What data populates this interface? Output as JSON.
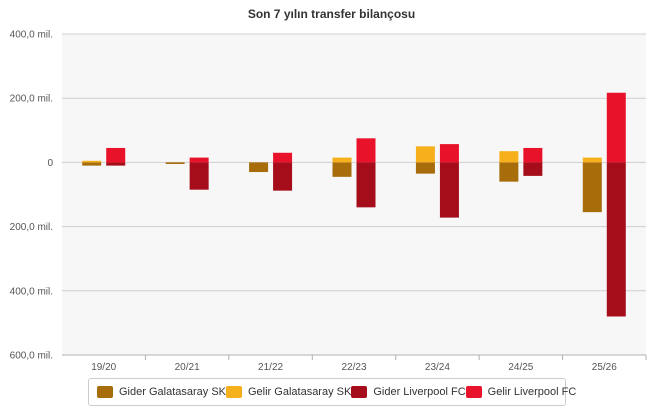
{
  "chart_data": {
    "type": "bar",
    "title": "Son 7 yılın transfer bilançosu",
    "categories": [
      "19/20",
      "20/21",
      "21/22",
      "22/23",
      "23/24",
      "24/25",
      "25/26"
    ],
    "ylim": [
      -600,
      400
    ],
    "yticks": [
      400,
      200,
      0,
      -200,
      -400,
      -600
    ],
    "ytick_labels": [
      "400,0 mil.",
      "200,0 mil.",
      "0",
      "200,0 mil.",
      "400,0 mil.",
      "600,0 mil."
    ],
    "series": [
      {
        "name": "Gider Galatasaray SK",
        "group": "galatasaray",
        "color": "#a86d0b",
        "values": [
          -10,
          -5,
          -30,
          -45,
          -35,
          -60,
          -155
        ]
      },
      {
        "name": "Gelir Galatasaray SK",
        "group": "galatasaray",
        "color": "#f6b01c",
        "values": [
          5,
          0,
          0,
          15,
          50,
          35,
          15
        ]
      },
      {
        "name": "Gider Liverpool FC",
        "group": "liverpool",
        "color": "#a50d1a",
        "values": [
          -10,
          -85,
          -88,
          -140,
          -172,
          -42,
          -480
        ]
      },
      {
        "name": "Gelir Liverpool FC",
        "group": "liverpool",
        "color": "#e8132a",
        "values": [
          45,
          15,
          30,
          75,
          57,
          45,
          217
        ]
      }
    ]
  }
}
